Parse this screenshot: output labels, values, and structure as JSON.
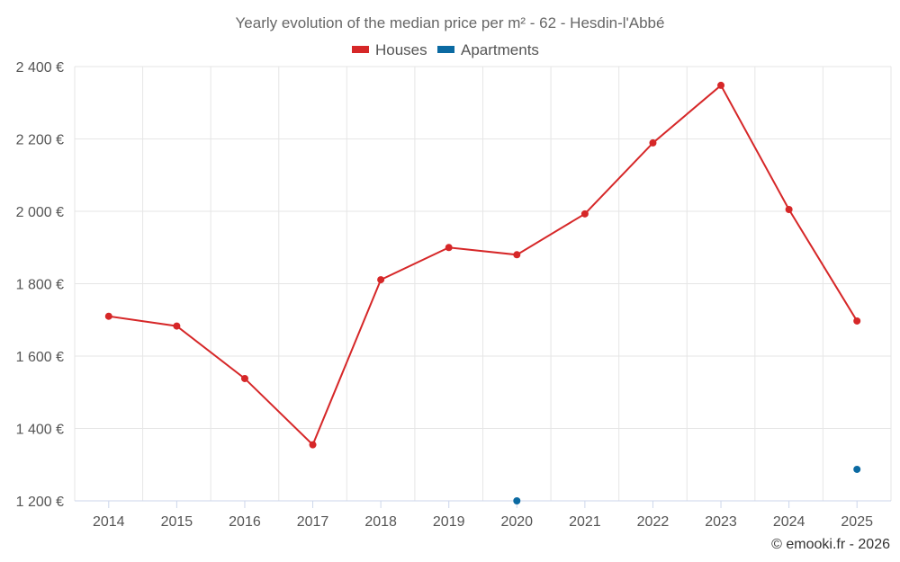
{
  "chart_data": {
    "type": "line",
    "title": "Yearly evolution of the median price per m² - 62 - Hesdin-l'Abbé",
    "categories": [
      "2014",
      "2015",
      "2016",
      "2017",
      "2018",
      "2019",
      "2020",
      "2021",
      "2022",
      "2023",
      "2024",
      "2025"
    ],
    "series": [
      {
        "name": "Houses",
        "color": "#d62728",
        "values": [
          1710,
          1683,
          1538,
          1355,
          1811,
          1900,
          1880,
          1993,
          2189,
          2348,
          2005,
          1697
        ]
      },
      {
        "name": "Apartments",
        "color": "#0b6aa2",
        "values": [
          null,
          null,
          null,
          null,
          null,
          null,
          1200,
          null,
          null,
          null,
          null,
          1287
        ]
      }
    ],
    "y_ticks": [
      "1 200 €",
      "1 400 €",
      "1 600 €",
      "1 800 €",
      "2 000 €",
      "2 200 €",
      "2 400 €"
    ],
    "ylim": [
      1200,
      2400
    ],
    "grid": true,
    "legend_position": "top-center"
  },
  "credit": "© emooki.fr - 2026"
}
